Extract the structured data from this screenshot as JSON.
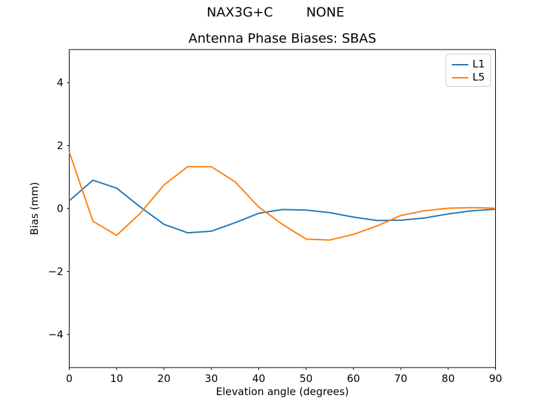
{
  "figure": {
    "suptitle": "NAX3G+C        NONE"
  },
  "chart_data": {
    "type": "line",
    "title": "Antenna Phase Biases: SBAS",
    "xlabel": "Elevation angle (degrees)",
    "ylabel": "Bias (mm)",
    "xlim": [
      0,
      90
    ],
    "ylim": [
      -5.05,
      5.05
    ],
    "xticks": [
      0,
      10,
      20,
      30,
      40,
      50,
      60,
      70,
      80,
      90
    ],
    "yticks": [
      -4,
      -2,
      0,
      2,
      4
    ],
    "ytick_labels": [
      "−4",
      "−2",
      "0",
      "2",
      "4"
    ],
    "grid": false,
    "legend": {
      "position": "upper right"
    },
    "x": [
      0,
      5,
      10,
      15,
      20,
      25,
      30,
      35,
      40,
      45,
      50,
      55,
      60,
      65,
      70,
      75,
      80,
      85,
      90
    ],
    "series": [
      {
        "name": "L1",
        "color": "#1f77b4",
        "values": [
          0.25,
          0.9,
          0.65,
          0.05,
          -0.5,
          -0.77,
          -0.72,
          -0.45,
          -0.15,
          -0.03,
          -0.05,
          -0.13,
          -0.27,
          -0.38,
          -0.37,
          -0.3,
          -0.17,
          -0.07,
          -0.02
        ]
      },
      {
        "name": "L5",
        "color": "#ff7f0e",
        "values": [
          1.8,
          -0.4,
          -0.85,
          -0.15,
          0.75,
          1.33,
          1.33,
          0.85,
          0.05,
          -0.5,
          -0.97,
          -1.0,
          -0.82,
          -0.55,
          -0.22,
          -0.07,
          0.01,
          0.03,
          0.01
        ]
      }
    ]
  }
}
